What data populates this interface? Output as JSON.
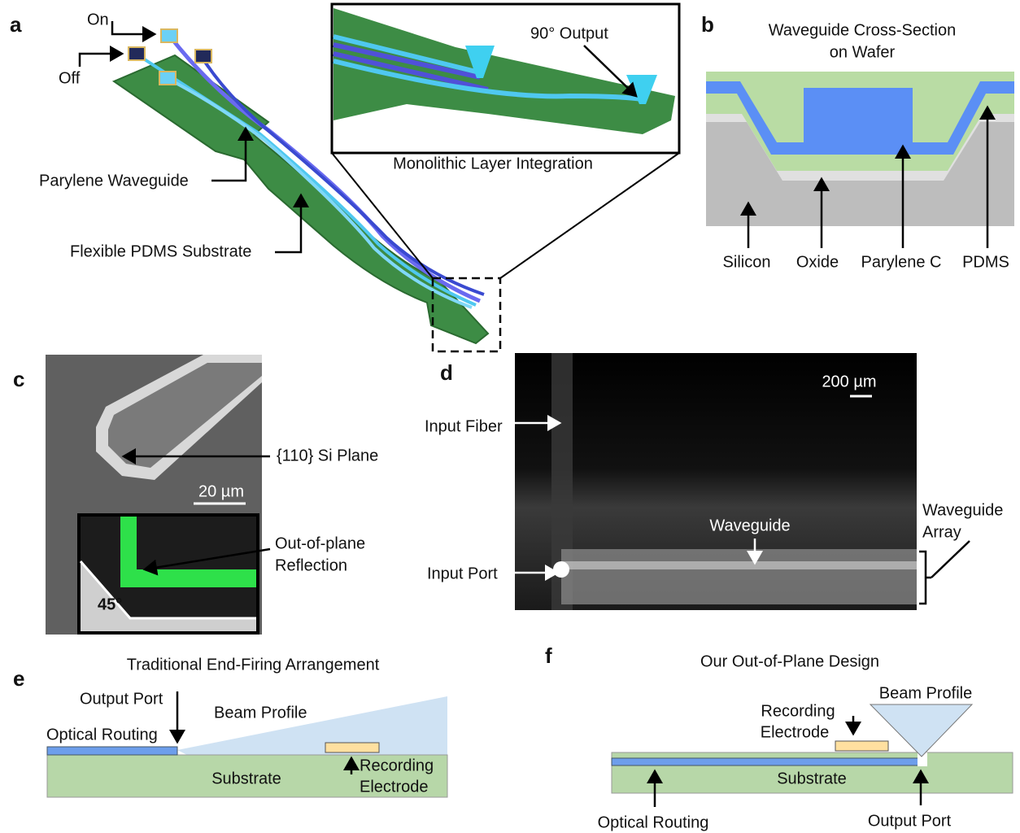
{
  "panels": {
    "a": {
      "label": "a",
      "on": "On",
      "off": "Off",
      "waveguide": "Parylene Waveguide",
      "substrate": "Flexible PDMS Substrate",
      "inset_output": "90° Output",
      "inset_caption": "Monolithic Layer Integration"
    },
    "b": {
      "label": "b",
      "title_lines": [
        "Waveguide Cross-Section",
        "on Wafer"
      ],
      "layers": [
        "Silicon",
        "Oxide",
        "Parylene C",
        "PDMS"
      ]
    },
    "c": {
      "label": "c",
      "plane": "{110} Si Plane",
      "scale": "20 µm",
      "reflection_lines": [
        "Out-of-plane",
        "Reflection"
      ],
      "angle": "45°"
    },
    "d": {
      "label": "d",
      "scale": "200 µm",
      "input_fiber": "Input Fiber",
      "input_port": "Input Port",
      "waveguide": "Waveguide",
      "array_lines": [
        "Waveguide",
        "Array"
      ]
    },
    "e": {
      "label": "e",
      "title": "Traditional End-Firing Arrangement",
      "output_port": "Output Port",
      "beam_profile": "Beam Profile",
      "optical_routing": "Optical Routing",
      "substrate": "Substrate",
      "electrode_lines": [
        "Recording",
        "Electrode"
      ]
    },
    "f": {
      "label": "f",
      "title": "Our Out-of-Plane Design",
      "electrode_lines": [
        "Recording",
        "Electrode"
      ],
      "beam_profile": "Beam Profile",
      "substrate": "Substrate",
      "optical_routing": "Optical Routing",
      "output_port": "Output Port"
    }
  }
}
